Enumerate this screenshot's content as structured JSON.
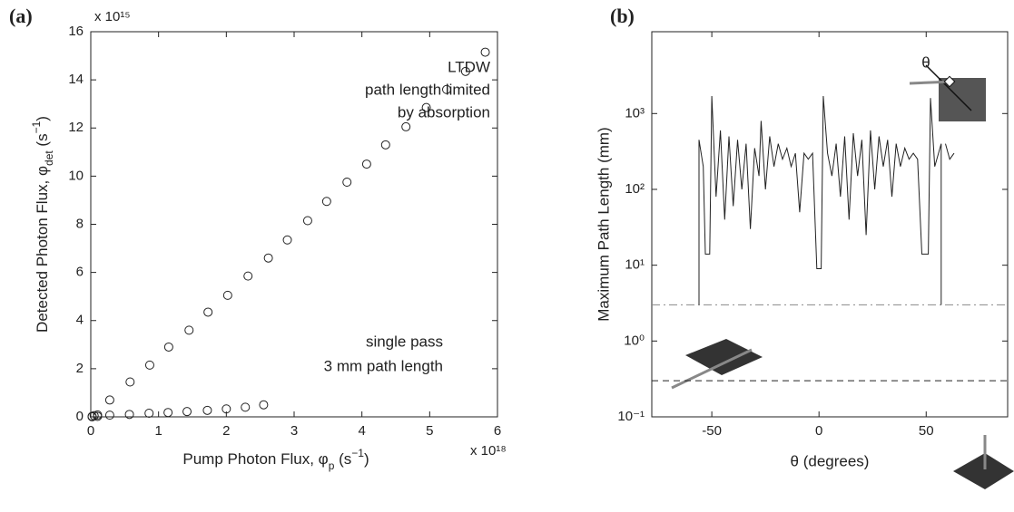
{
  "chart_data": [
    {
      "type": "scatter",
      "label": "(a)",
      "xlabel": [
        "Pump Photon Flux, φ",
        "p",
        " (s",
        "−1",
        ")"
      ],
      "ylabel": [
        "Detected Photon Flux, φ",
        "det",
        " (s",
        "−1",
        ")"
      ],
      "x_multiplier": "x 10¹⁸",
      "y_multiplier": "x 10¹⁵",
      "xlim": [
        0,
        6
      ],
      "ylim": [
        0,
        16
      ],
      "xticks": [
        0,
        1,
        2,
        3,
        4,
        5,
        6
      ],
      "yticks": [
        0,
        2,
        4,
        6,
        8,
        10,
        12,
        14,
        16
      ],
      "annotations": [
        "LTDW",
        "path length limited",
        "by absorption",
        "single pass",
        "3 mm path length"
      ],
      "series": [
        {
          "color": "#222",
          "x": [
            0.02,
            0.05,
            0.1,
            0.28,
            0.58,
            0.87,
            1.15,
            1.45,
            1.73,
            2.02,
            2.32,
            2.62,
            2.9,
            3.2,
            3.48,
            3.78,
            4.07,
            4.35,
            4.65,
            4.95,
            5.25,
            5.53,
            5.82
          ],
          "values": [
            0.02,
            0.05,
            0.08,
            0.7,
            1.45,
            2.15,
            2.9,
            3.6,
            4.35,
            5.05,
            5.85,
            6.6,
            7.35,
            8.15,
            8.95,
            9.75,
            10.5,
            11.3,
            12.05,
            12.85,
            13.6,
            14.35,
            15.15
          ]
        },
        {
          "color": "#222",
          "x": [
            0.02,
            0.1,
            0.28,
            0.57,
            0.86,
            1.14,
            1.42,
            1.72,
            2.0,
            2.28,
            2.55
          ],
          "values": [
            0.0,
            0.02,
            0.07,
            0.1,
            0.15,
            0.18,
            0.22,
            0.27,
            0.33,
            0.4,
            0.5
          ]
        }
      ]
    },
    {
      "type": "line",
      "label": "(b)",
      "yscale": "log",
      "xlabel": "θ (degrees)",
      "ylabel": "Maximum Path Length (mm)",
      "xlim": [
        -78,
        88
      ],
      "ylim": [
        0.1,
        12000
      ],
      "xticks": [
        -50,
        0,
        50
      ],
      "yticks": [
        {
          "value": 0.1,
          "label": "10⁻¹"
        },
        {
          "value": 1,
          "label": "10⁰"
        },
        {
          "value": 10,
          "label": "10¹"
        },
        {
          "value": 100,
          "label": "10²"
        },
        {
          "value": 1000,
          "label": "10³"
        }
      ],
      "annotations": [
        "θ"
      ],
      "hlines": [
        {
          "value": 3,
          "style": "dashdot",
          "color": "#888"
        },
        {
          "value": 0.3,
          "style": "dashed",
          "color": "#222"
        }
      ],
      "series": [
        {
          "color": "#222",
          "x": [
            -56,
            -56,
            -54,
            -53,
            -51,
            -50,
            -48,
            -46,
            -44,
            -42,
            -40,
            -38,
            -36,
            -34,
            -32,
            -30,
            -28,
            -27,
            -25,
            -23,
            -21,
            -19,
            -17,
            -15,
            -13,
            -11,
            -9,
            -7,
            -5,
            -3,
            -1,
            1,
            2,
            4,
            6,
            8,
            10,
            12,
            14,
            16,
            18,
            20,
            22,
            24,
            26,
            28,
            30,
            32,
            34,
            36,
            38,
            40,
            42,
            44,
            46,
            48,
            51,
            52,
            54,
            57,
            57,
            null,
            59,
            61,
            63
          ],
          "values": [
            3,
            450,
            200,
            14,
            14,
            1700,
            80,
            600,
            40,
            500,
            60,
            450,
            100,
            400,
            30,
            350,
            150,
            800,
            100,
            500,
            200,
            400,
            250,
            350,
            200,
            300,
            50,
            300,
            250,
            300,
            9,
            9,
            1700,
            300,
            150,
            400,
            80,
            500,
            40,
            550,
            150,
            450,
            25,
            600,
            100,
            500,
            200,
            450,
            80,
            400,
            200,
            350,
            250,
            300,
            250,
            14,
            14,
            1600,
            200,
            400,
            3,
            null,
            400,
            250,
            300
          ]
        }
      ]
    }
  ]
}
